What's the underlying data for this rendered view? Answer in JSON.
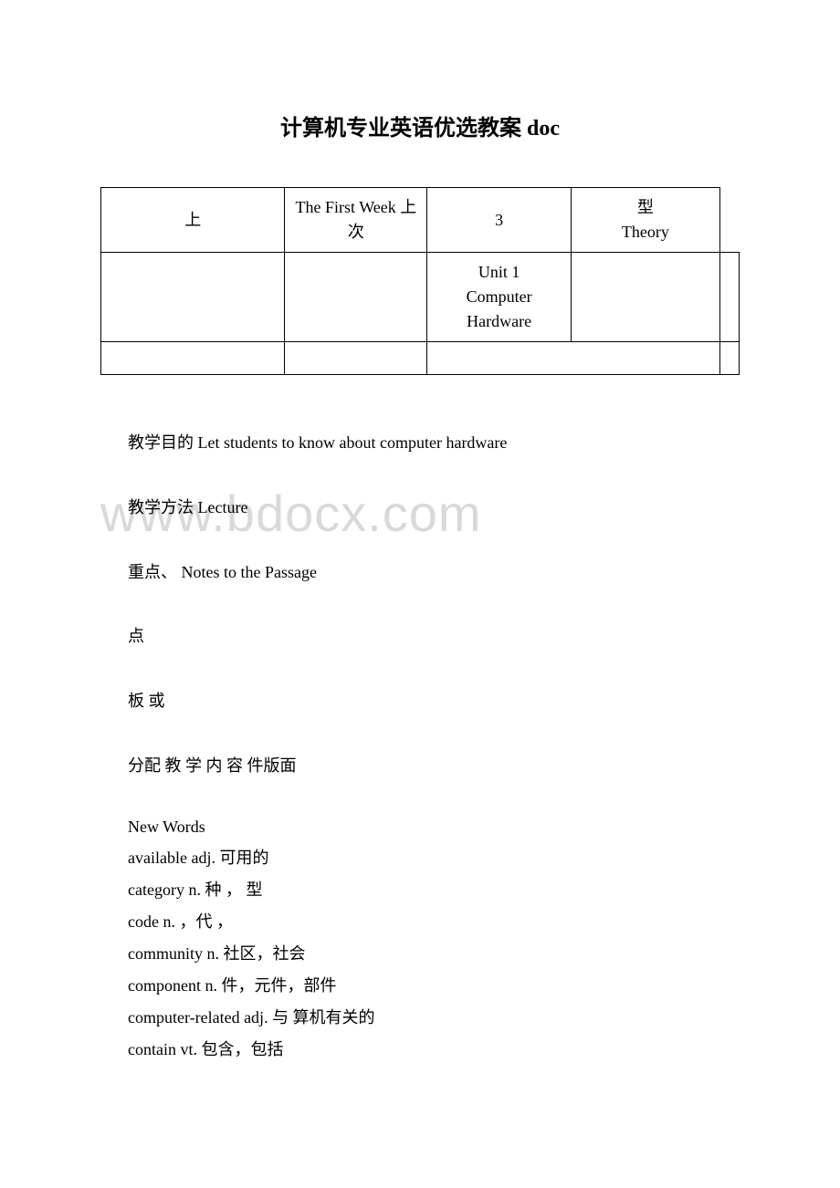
{
  "title": "计算机专业英语优选教案 doc",
  "table": {
    "row1": {
      "col1": "上",
      "col2": "The First Week 上 次",
      "col3": "3",
      "col4": "型Theory",
      "col4_line1": "型",
      "col4_line2": "Theory"
    },
    "row2": {
      "col1": "",
      "col2": "",
      "col3": "Unit 1 Computer Hardware",
      "col3_line1": "Unit 1",
      "col3_line2": "Computer",
      "col3_line3": "Hardware",
      "col4": "",
      "col5": ""
    },
    "row3": {
      "col1": "",
      "col2": "",
      "col3": "",
      "col4": ""
    }
  },
  "body": {
    "line1": "教学目的 Let students to know about computer hardware",
    "line2": "教学方法 Lecture",
    "line3": "重点、 Notes to the Passage",
    "line4": "点",
    "line5": "板 或",
    "line6": " 分配 教 学 内 容 件版面"
  },
  "vocab": {
    "header": "New Words",
    "items": [
      "available adj. 可用的",
      "category n. 种 ， 型",
      "code n.  ，代 ，",
      "community n. 社区，社会",
      "component n.  件，元件，部件",
      "computer-related adj. 与 算机有关的",
      "contain vt. 包含，包括"
    ]
  },
  "watermark": "www.bdocx.com"
}
